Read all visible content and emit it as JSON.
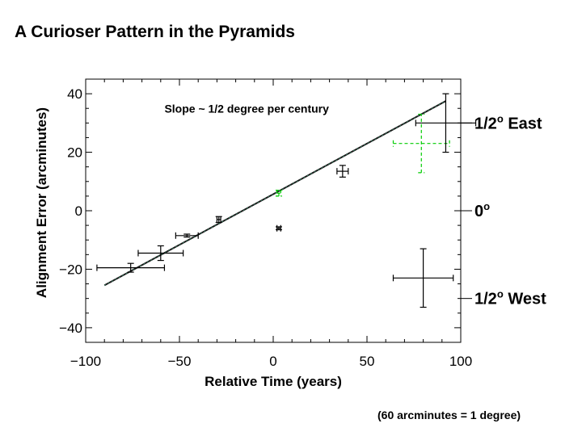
{
  "slide": {
    "title": "A Curioser Pattern in the Pyramids",
    "footnote": "(60 arcminutes = 1 degree)"
  },
  "chart_data": {
    "type": "scatter",
    "xlabel": "Relative Time (years)",
    "ylabel": "Alignment Error (arcminutes)",
    "xlim": [
      -100,
      100
    ],
    "ylim": [
      -45,
      45
    ],
    "xticks": [
      -100,
      -50,
      0,
      50,
      100
    ],
    "xtick_labels": [
      "−100",
      "−50",
      "0",
      "50",
      "100"
    ],
    "yticks": [
      -40,
      -20,
      0,
      20,
      40
    ],
    "ytick_labels": [
      "−40",
      "−20",
      "0",
      "20",
      "40"
    ],
    "annotation": "Slope ~ 1/2 degree per century",
    "fit_line": {
      "x": [
        -90,
        92
      ],
      "y": [
        -25.5,
        37.5
      ],
      "label": "Slope ~ 1/2 degree per century"
    },
    "points": [
      {
        "name": "point-1",
        "x": -76,
        "y": -19.5,
        "xerr": 18,
        "yerr": 1.5,
        "color": "#000000",
        "style": "solid"
      },
      {
        "name": "point-2",
        "x": -60,
        "y": -14.5,
        "xerr": 12,
        "yerr": 2.5,
        "color": "#000000",
        "style": "solid"
      },
      {
        "name": "point-3",
        "x": -46,
        "y": -8.5,
        "xerr": 6,
        "yerr": 0.5,
        "color": "#000000",
        "style": "solid"
      },
      {
        "name": "point-4",
        "x": -29,
        "y": -3,
        "xerr": 1,
        "yerr": 1,
        "color": "#000000",
        "style": "solid"
      },
      {
        "name": "point-5",
        "x": 3,
        "y": -6,
        "xerr": 1,
        "yerr": 0.5,
        "color": "#000000",
        "style": "solid"
      },
      {
        "name": "point-6",
        "x": 3,
        "y": 6,
        "xerr": 1,
        "yerr": 1,
        "color": "#00cc00",
        "style": "dashed"
      },
      {
        "name": "point-7",
        "x": 37,
        "y": 13.5,
        "xerr": 3,
        "yerr": 2,
        "color": "#000000",
        "style": "solid"
      },
      {
        "name": "point-8",
        "x": 79,
        "y": 23,
        "xerr": 15,
        "yerr": 10,
        "color": "#00cc00",
        "style": "dashed"
      },
      {
        "name": "point-9",
        "x": 92,
        "y": 30,
        "xerr": 16,
        "yerr": 10,
        "color": "#000000",
        "style": "solid"
      },
      {
        "name": "legend-error-bar",
        "x": 80,
        "y": -23,
        "xerr": 16,
        "yerr": 10,
        "color": "#000000",
        "style": "solid"
      }
    ],
    "right_axis": [
      {
        "y": 30,
        "label": "1/2",
        "sup": "o",
        "suffix": " East"
      },
      {
        "y": 0,
        "label": "0",
        "sup": "o",
        "suffix": ""
      },
      {
        "y": -30,
        "label": "1/2",
        "sup": "o",
        "suffix": " West"
      }
    ]
  }
}
